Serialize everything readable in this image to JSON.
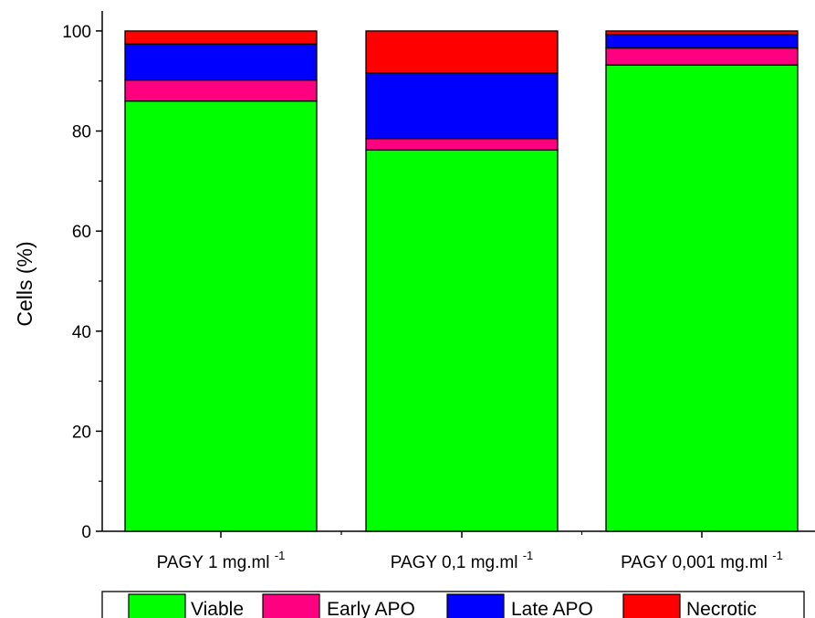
{
  "chart_data": {
    "type": "bar",
    "stacked": true,
    "ylabel": "Cells (%)",
    "xlabel": "",
    "ylim": [
      0,
      104
    ],
    "yticks": [
      0,
      20,
      40,
      60,
      80,
      100
    ],
    "grid": false,
    "legend_position": "bottom",
    "categories": [
      {
        "main": "PAGY 1 mg.ml",
        "sup": "-1"
      },
      {
        "main": "PAGY 0,1 mg.ml",
        "sup": "-1"
      },
      {
        "main": "PAGY 0,001 mg.ml",
        "sup": "-1"
      }
    ],
    "series": [
      {
        "name": "Viable",
        "color": "#00ff00",
        "values": [
          86.0,
          76.2,
          93.2
        ]
      },
      {
        "name": "Early APO",
        "color": "#ff0080",
        "values": [
          4.2,
          2.3,
          3.4
        ]
      },
      {
        "name": "Late APO",
        "color": "#0000ff",
        "values": [
          7.2,
          13.1,
          2.7
        ]
      },
      {
        "name": "Necrotic",
        "color": "#ff0000",
        "values": [
          2.6,
          8.4,
          0.7
        ]
      }
    ]
  }
}
